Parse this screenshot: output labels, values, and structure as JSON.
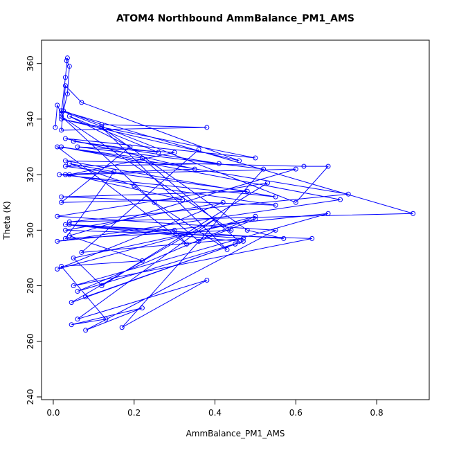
{
  "chart_data": {
    "type": "line",
    "title": "ATOM4 Northbound AmmBalance_PM1_AMS",
    "x_label": "AmmBalance_PM1_AMS",
    "y_label": "Theta (K)",
    "color": "#0000ff",
    "markers": true,
    "x": [
      0.005,
      0.01,
      0.02,
      0.03,
      0.035,
      0.033,
      0.04,
      0.035,
      0.025,
      0.12,
      0.38,
      0.02,
      0.03,
      0.07,
      0.46,
      0.02,
      0.5,
      0.03,
      0.35,
      0.015,
      0.55,
      0.03,
      0.62,
      0.68,
      0.6,
      0.02,
      0.89,
      0.04,
      0.73,
      0.02,
      0.71,
      0.01,
      0.68,
      0.05,
      0.64,
      0.03,
      0.42,
      0.01,
      0.5,
      0.06,
      0.47,
      0.08,
      0.45,
      0.045,
      0.4,
      0.06,
      0.38,
      0.17,
      0.52,
      0.06,
      0.3,
      0.04,
      0.32,
      0.02,
      0.19,
      0.04,
      0.26,
      0.05,
      0.41,
      0.03,
      0.48,
      0.02,
      0.55,
      0.03,
      0.6,
      0.04,
      0.22,
      0.02,
      0.13,
      0.045,
      0.22,
      0.08,
      0.55,
      0.01,
      0.53,
      0.12,
      0.05,
      0.5,
      0.36,
      0.2,
      0.04,
      0.15,
      0.03,
      0.44,
      0.02,
      0.25,
      0.43,
      0.12,
      0.48,
      0.57,
      0.04,
      0.3,
      0.33,
      0.01,
      0.22,
      0.46,
      0.03,
      0.47,
      0.07,
      0.36
    ],
    "values": [
      337,
      345,
      342,
      355,
      362,
      361,
      359,
      349,
      343,
      338,
      337,
      336,
      352,
      346,
      325,
      340,
      326,
      333,
      322,
      320,
      312,
      325,
      323,
      323,
      310,
      343,
      306,
      303,
      313,
      330,
      311,
      296,
      306,
      280,
      297,
      300,
      310,
      286,
      305,
      278,
      296,
      276,
      295,
      274,
      304,
      268,
      282,
      265,
      322,
      330,
      328,
      320,
      311,
      310,
      330,
      341,
      328,
      332,
      324,
      323,
      314,
      312,
      309,
      320,
      322,
      298,
      289,
      287,
      268,
      266,
      272,
      264,
      300,
      305,
      317,
      280,
      290,
      304,
      296,
      316,
      324,
      321,
      297,
      300,
      341,
      310,
      293,
      337,
      300,
      297,
      302,
      300,
      295,
      330,
      326,
      296,
      302,
      297,
      292,
      329
    ],
    "xlim": [
      -0.029,
      0.93
    ],
    "ylim": [
      239,
      368.4
    ],
    "xticks": [
      {
        "value": 0,
        "label": "0.0"
      },
      0.2,
      0.4,
      0.6,
      0.8
    ],
    "yticks": [
      240,
      260,
      280,
      300,
      320,
      340,
      360
    ]
  }
}
